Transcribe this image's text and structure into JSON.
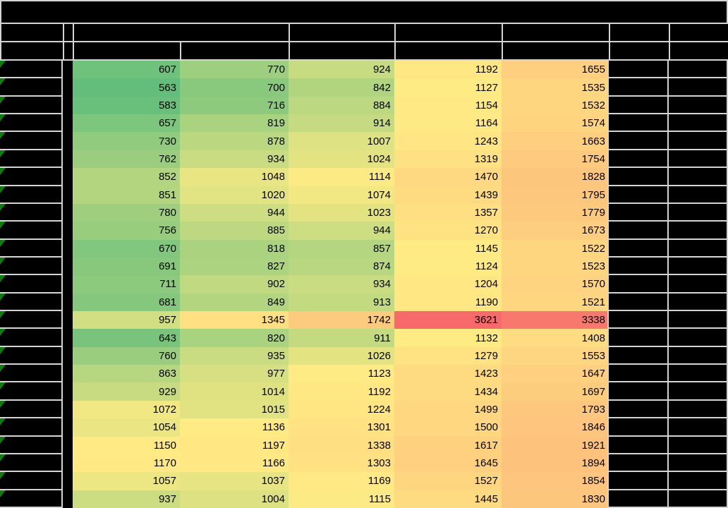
{
  "sheet": {
    "title_text": "",
    "header_row_1_labels": [
      "",
      "",
      "",
      "",
      "",
      "",
      "",
      ""
    ],
    "header_row_2_labels": [
      "",
      "",
      "",
      "",
      "",
      "",
      "",
      "",
      ""
    ],
    "heatmap": {
      "min_value": 563,
      "mid_value": 1124,
      "max_value": 3621,
      "min_color": "#63BE7B",
      "mid_color": "#FFEB84",
      "max_color": "#F8696B"
    },
    "colors": {
      "background": "#000000",
      "gridline": "#D4D4D4",
      "cell_text": "#000000",
      "error_indicator_green": "#107C10"
    },
    "rows": [
      [
        607,
        770,
        924,
        1192,
        1655
      ],
      [
        563,
        700,
        842,
        1127,
        1535
      ],
      [
        583,
        716,
        884,
        1154,
        1532
      ],
      [
        657,
        819,
        914,
        1164,
        1574
      ],
      [
        730,
        878,
        1007,
        1243,
        1663
      ],
      [
        762,
        934,
        1024,
        1319,
        1754
      ],
      [
        852,
        1048,
        1114,
        1470,
        1828
      ],
      [
        851,
        1020,
        1074,
        1439,
        1795
      ],
      [
        780,
        944,
        1023,
        1357,
        1779
      ],
      [
        756,
        885,
        944,
        1270,
        1673
      ],
      [
        670,
        818,
        857,
        1145,
        1522
      ],
      [
        691,
        827,
        874,
        1124,
        1523
      ],
      [
        711,
        902,
        934,
        1204,
        1570
      ],
      [
        681,
        849,
        913,
        1190,
        1521
      ],
      [
        957,
        1345,
        1742,
        3621,
        3338
      ],
      [
        643,
        820,
        911,
        1132,
        1408
      ],
      [
        760,
        935,
        1026,
        1279,
        1553
      ],
      [
        863,
        977,
        1123,
        1423,
        1647
      ],
      [
        929,
        1014,
        1192,
        1434,
        1697
      ],
      [
        1072,
        1015,
        1224,
        1499,
        1793
      ],
      [
        1054,
        1136,
        1301,
        1500,
        1846
      ],
      [
        1150,
        1197,
        1338,
        1617,
        1921
      ],
      [
        1170,
        1166,
        1303,
        1645,
        1894
      ],
      [
        1057,
        1037,
        1169,
        1527,
        1854
      ],
      [
        937,
        1004,
        1115,
        1445,
        1830
      ]
    ]
  }
}
